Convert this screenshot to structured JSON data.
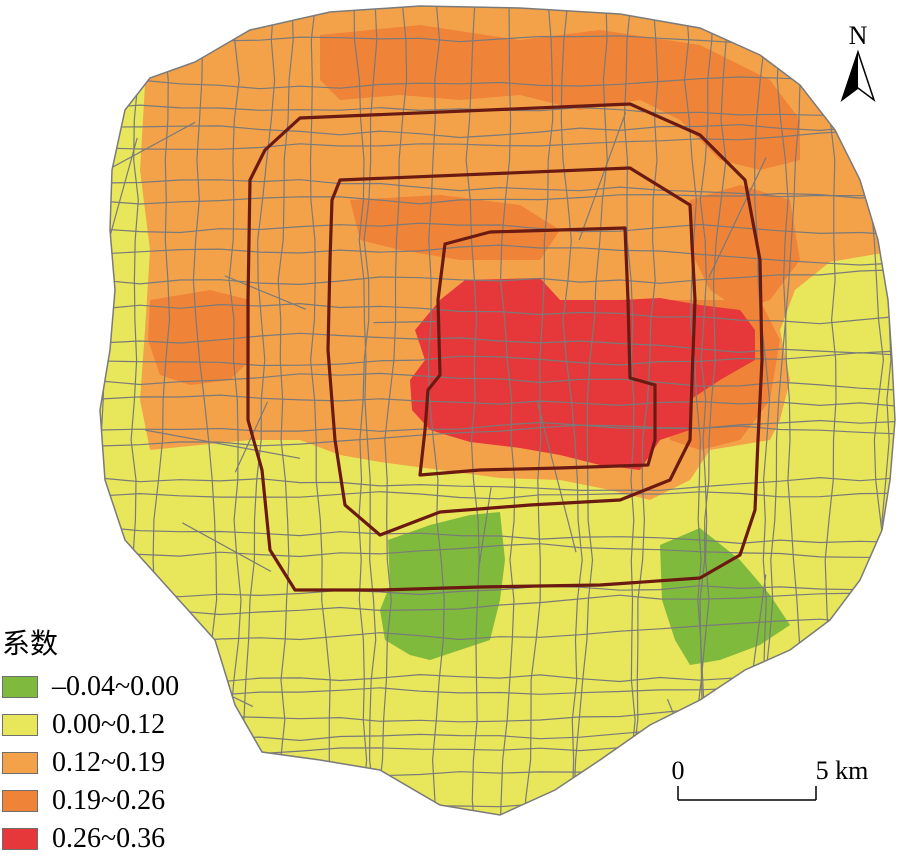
{
  "map": {
    "north_label": "N",
    "legend": {
      "title": "系数",
      "classes": [
        {
          "label": "–0.04~0.00",
          "color": "#7fba3c"
        },
        {
          "label": "0.00~0.12",
          "color": "#e8e65a"
        },
        {
          "label": "0.12~0.19",
          "color": "#f4a24a"
        },
        {
          "label": "0.19~0.26",
          "color": "#ef8338"
        },
        {
          "label": "0.26~0.36",
          "color": "#e6383a"
        }
      ]
    },
    "scale_bar": {
      "start_label": "0",
      "end_label": "5 km"
    },
    "colors": {
      "boundary": "#7a7a7a",
      "ring_road": "#6b1a12"
    }
  }
}
